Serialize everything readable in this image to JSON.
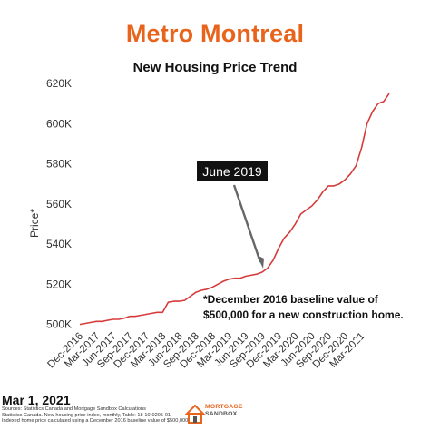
{
  "header": {
    "title": "Metro Montreal",
    "subtitle": "New Housing Price Trend"
  },
  "annotations": {
    "callout": "June 2019",
    "baseline_note_line1": "*December 2016 baseline value of",
    "baseline_note_line2": "$500,000 for a new construction home."
  },
  "footer": {
    "date": "Mar 1, 2021",
    "sources_line1": "Sources: Statistics Canada and Mortgage Sandbox Calculations",
    "sources_line2": "Statistics Canada. New housing price index, monthly, Table: 18-10-0205-01",
    "sources_line3": "Indexed home price calculated using a December 2016 baseline value of $500,000.",
    "logo_line1": "MORTGAGE",
    "logo_line2": "SANDBOX"
  },
  "colors": {
    "title": "#e8641c",
    "line": "#d63b3b",
    "callout_bg": "#111111",
    "callout_text": "#ffffff",
    "arrow": "#666666",
    "logo_accent": "#e8641c"
  },
  "chart_data": {
    "type": "line",
    "title": "New Housing Price Trend",
    "ylabel": "Price*",
    "xlabel": "",
    "ylim": [
      498000,
      620000
    ],
    "yticks": [
      500000,
      520000,
      540000,
      560000,
      580000,
      600000,
      620000
    ],
    "ytick_labels": [
      "500K",
      "520K",
      "540K",
      "560K",
      "580K",
      "600K",
      "620K"
    ],
    "xtick_labels": [
      "Dec-2016",
      "Mar-2017",
      "Jun-2017",
      "Sep-2017",
      "Dec-2017",
      "Mar-2018",
      "Jun-2018",
      "Sep-2018",
      "Dec-2018",
      "Mar-2019",
      "Jun-2019",
      "Sep-2019",
      "Dec-2019",
      "Mar-2020",
      "Jun-2020",
      "Sep-2020",
      "Dec-2020",
      "Mar-2021"
    ],
    "grid": false,
    "legend": "none",
    "series": [
      {
        "values": [
          500000,
          500500,
          501000,
          501500,
          501500,
          502000,
          502500,
          502500,
          503000,
          504000,
          504000,
          504500,
          505000,
          505500,
          506000,
          506000,
          511000,
          511500,
          511500,
          512000,
          514000,
          516000,
          517000,
          517500,
          518500,
          520000,
          521500,
          522500,
          523000,
          523000,
          524000,
          524500,
          525000,
          526000,
          528000,
          532000,
          538000,
          543000,
          546000,
          550000,
          555000,
          557000,
          559000,
          562000,
          566000,
          569000,
          569000,
          570000,
          572000,
          575000,
          579000,
          588000,
          600000,
          606000,
          610000,
          611000,
          615000
        ]
      }
    ]
  }
}
